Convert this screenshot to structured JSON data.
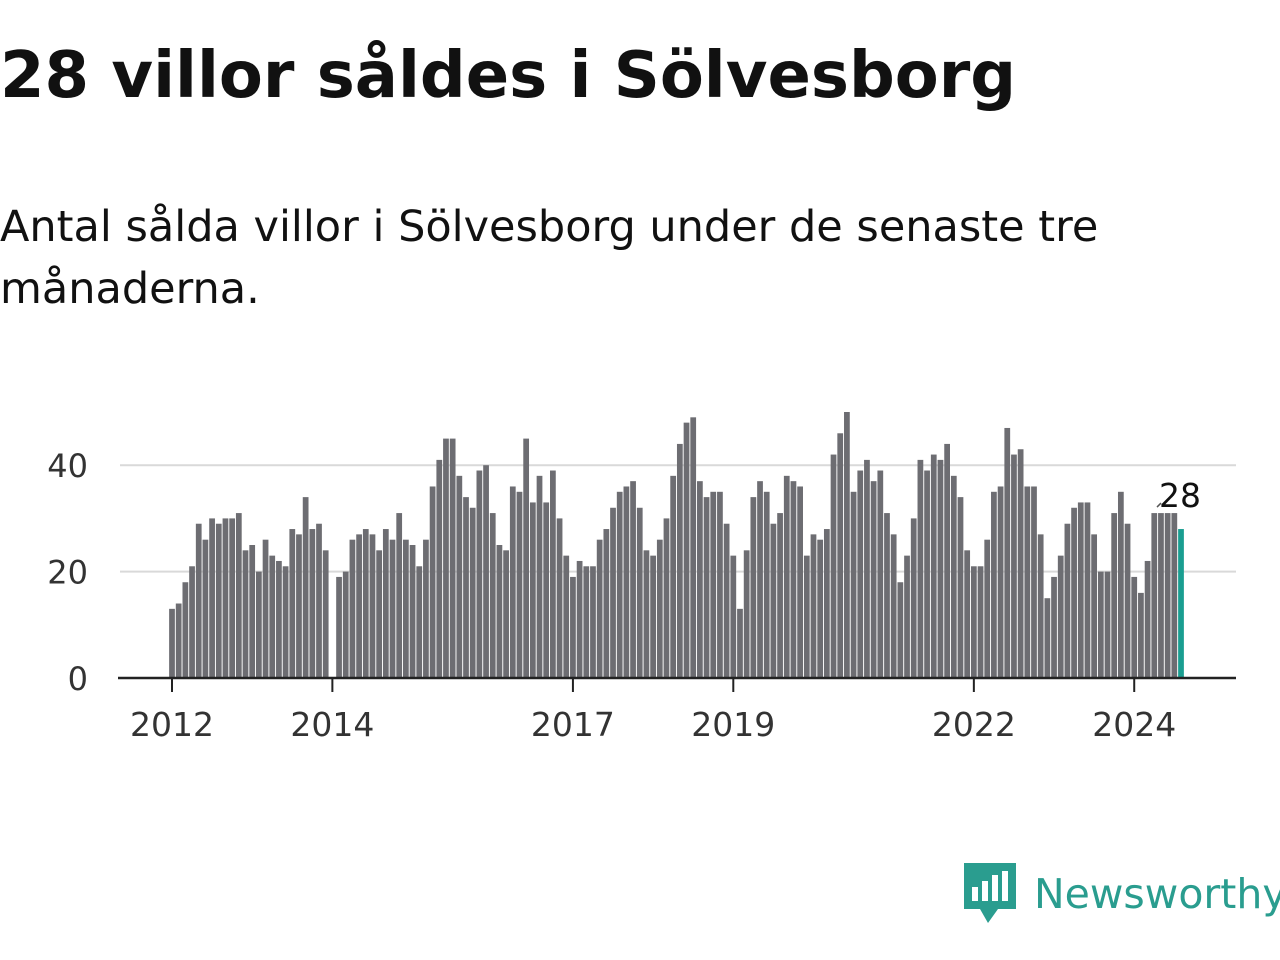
{
  "title": "28 villor såldes i Sölvesborg",
  "subtitle": "Antal sålda villor i Sölvesborg under de senaste tre månaderna.",
  "logo": {
    "icon": "newsworthy-logo-icon",
    "text": "Newsworthy",
    "color": "#2a9d8f"
  },
  "colors": {
    "bar": "#6d6d72",
    "highlight": "#1a9e91",
    "grid": "#d9d9d9",
    "axis": "#222222",
    "text": "#111111"
  },
  "chart_data": {
    "type": "bar",
    "title": "",
    "xlabel": "",
    "ylabel": "",
    "ylim": [
      0,
      50
    ],
    "yticks": [
      0,
      20,
      40
    ],
    "grid": "horizontal",
    "x_start": "2012-01",
    "x_end": "2024-07",
    "xtick_labels": [
      "2012",
      "2014",
      "2017",
      "2019",
      "2022",
      "2024"
    ],
    "xtick_years": [
      2012,
      2014,
      2017,
      2019,
      2022,
      2024
    ],
    "highlight_label": "28",
    "values": [
      13,
      14,
      18,
      21,
      29,
      26,
      30,
      29,
      30,
      30,
      31,
      24,
      25,
      20,
      26,
      23,
      22,
      21,
      28,
      27,
      34,
      28,
      29,
      24,
      0,
      19,
      20,
      26,
      27,
      28,
      27,
      24,
      28,
      26,
      31,
      26,
      25,
      21,
      26,
      36,
      41,
      45,
      45,
      38,
      34,
      32,
      39,
      40,
      31,
      25,
      24,
      36,
      35,
      45,
      33,
      38,
      33,
      39,
      30,
      23,
      19,
      22,
      21,
      21,
      26,
      28,
      32,
      35,
      36,
      37,
      32,
      24,
      23,
      26,
      30,
      38,
      44,
      48,
      49,
      37,
      34,
      35,
      35,
      29,
      23,
      13,
      24,
      34,
      37,
      35,
      29,
      31,
      38,
      37,
      36,
      23,
      27,
      26,
      28,
      42,
      46,
      50,
      35,
      39,
      41,
      37,
      39,
      31,
      27,
      18,
      23,
      30,
      41,
      39,
      42,
      41,
      44,
      38,
      34,
      24,
      21,
      21,
      26,
      35,
      36,
      47,
      42,
      43,
      36,
      36,
      27,
      15,
      19,
      23,
      29,
      32,
      33,
      33,
      27,
      20,
      20,
      31,
      35,
      29,
      19,
      16,
      22,
      31,
      31,
      31,
      31,
      28
    ]
  }
}
